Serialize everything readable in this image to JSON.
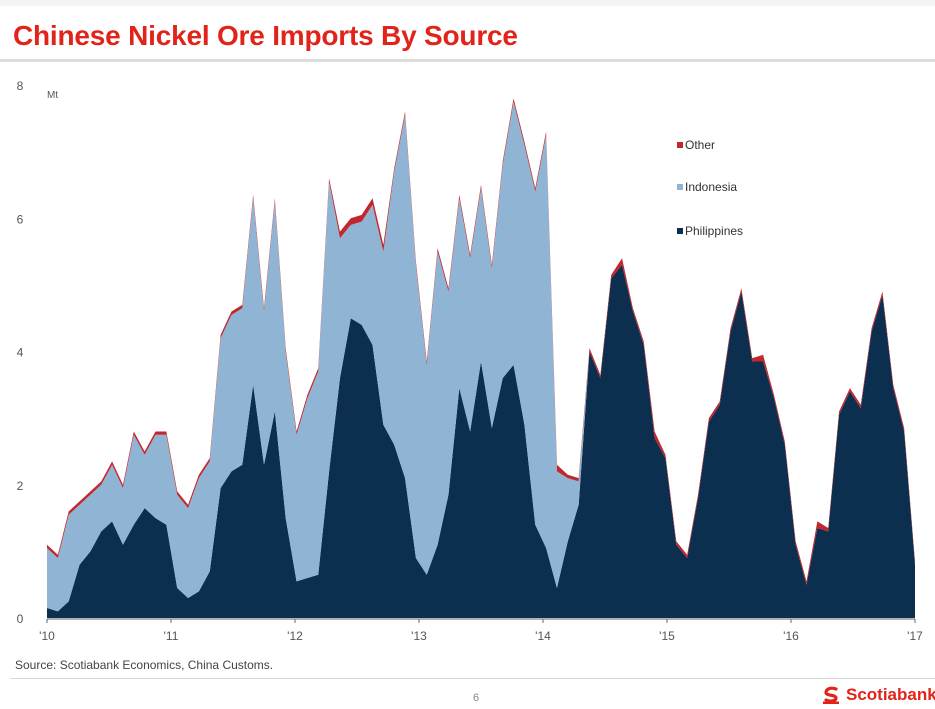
{
  "title": "Chinese Nickel Ore Imports By Source",
  "source": "Source: Scotiabank Economics, China Customs.",
  "page_number": "6",
  "logo_text": "Scotiabank",
  "colors": {
    "title": "#e2231a",
    "other": "#c1272d",
    "indonesia": "#8fb4d4",
    "philippines": "#0c2e4f"
  },
  "chart_data": {
    "type": "area",
    "stacked": true,
    "unit_label": "Mt",
    "ylim": [
      0,
      8
    ],
    "y_ticks": [
      0,
      2,
      4,
      6,
      8
    ],
    "x_ticks": [
      "'10",
      "'11",
      "'12",
      "'13",
      "'14",
      "'15",
      "'16",
      "'17"
    ],
    "x_start_year": 2010,
    "grid": false,
    "legend_position": "top-right",
    "series": [
      {
        "name": "Philippines",
        "values": [
          0.15,
          0.1,
          0.25,
          0.8,
          1.0,
          1.3,
          1.45,
          1.1,
          1.4,
          1.65,
          1.5,
          1.4,
          0.45,
          0.3,
          0.4,
          0.7,
          1.95,
          2.2,
          2.3,
          3.5,
          2.3,
          3.1,
          1.5,
          0.55,
          0.6,
          0.65,
          2.2,
          3.6,
          4.5,
          4.4,
          4.1,
          2.9,
          2.6,
          2.1,
          0.9,
          0.65,
          1.1,
          1.85,
          3.45,
          2.8,
          3.85,
          2.85,
          3.6,
          3.8,
          2.9,
          1.4,
          1.05,
          0.45,
          1.15,
          1.7,
          4.0,
          3.6,
          5.1,
          5.3,
          4.6,
          4.1,
          2.7,
          2.4,
          1.1,
          0.9,
          1.8,
          2.95,
          3.2,
          4.3,
          4.9,
          3.85,
          3.85,
          3.3,
          2.6,
          1.1,
          0.5,
          1.35,
          1.3,
          3.05,
          3.4,
          3.15,
          4.3,
          4.85,
          3.45,
          2.8,
          0.8
        ]
      },
      {
        "name": "Indonesia",
        "values": [
          0.9,
          0.8,
          1.3,
          0.9,
          0.85,
          0.7,
          0.85,
          0.85,
          1.35,
          0.8,
          1.25,
          1.35,
          1.4,
          1.35,
          1.7,
          1.65,
          2.25,
          2.35,
          2.35,
          2.8,
          2.3,
          3.15,
          2.5,
          2.2,
          2.7,
          3.05,
          4.35,
          2.1,
          1.4,
          1.55,
          2.1,
          2.6,
          4.1,
          5.45,
          4.4,
          3.15,
          4.4,
          3.05,
          2.85,
          2.6,
          2.6,
          2.4,
          3.2,
          3.95,
          4.2,
          5.0,
          6.2,
          1.75,
          0.95,
          0.35,
          0.0,
          0.0,
          0.0,
          0.0,
          0.0,
          0.0,
          0.0,
          0.0,
          0.0,
          0.0,
          0.0,
          0.0,
          0.0,
          0.0,
          0.0,
          0.0,
          0.0,
          0.0,
          0.0,
          0.0,
          0.0,
          0.0,
          0.0,
          0.0,
          0.0,
          0.0,
          0.0,
          0.0,
          0.0,
          0.0,
          0.0
        ]
      },
      {
        "name": "Other",
        "values": [
          0.05,
          0.05,
          0.05,
          0.05,
          0.05,
          0.05,
          0.05,
          0.05,
          0.05,
          0.05,
          0.05,
          0.05,
          0.05,
          0.05,
          0.05,
          0.05,
          0.05,
          0.05,
          0.05,
          0.05,
          0.05,
          0.05,
          0.05,
          0.05,
          0.05,
          0.05,
          0.05,
          0.1,
          0.1,
          0.1,
          0.1,
          0.1,
          0.05,
          0.05,
          0.05,
          0.05,
          0.05,
          0.05,
          0.05,
          0.05,
          0.05,
          0.05,
          0.05,
          0.05,
          0.05,
          0.05,
          0.05,
          0.1,
          0.05,
          0.05,
          0.05,
          0.05,
          0.05,
          0.1,
          0.05,
          0.05,
          0.1,
          0.05,
          0.05,
          0.05,
          0.05,
          0.05,
          0.05,
          0.05,
          0.05,
          0.05,
          0.1,
          0.05,
          0.05,
          0.05,
          0.05,
          0.1,
          0.05,
          0.05,
          0.05,
          0.05,
          0.05,
          0.05,
          0.05,
          0.05,
          0.05
        ]
      }
    ]
  }
}
